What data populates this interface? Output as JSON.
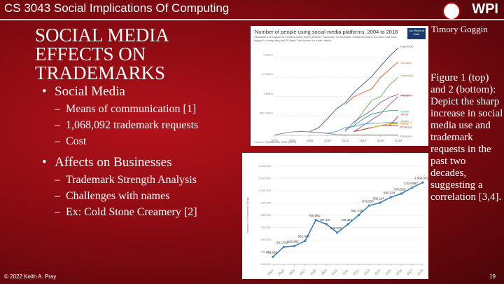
{
  "slide": {
    "course": "CS 3043 Social Implications Of Computing",
    "logo": "WPI",
    "title": "SOCIAL MEDIA EFFECTS ON TRADEMARKS",
    "author": "Timory Goggin",
    "bullets": [
      {
        "text": "Social Media",
        "sub": [
          "Means of communication [1]",
          "1,068,092 trademark requests",
          "Cost"
        ]
      },
      {
        "text": "Affects on Businesses",
        "sub": [
          "Trademark Strength Analysis",
          "Challenges with names",
          "Ex: Cold Stone Creamery [2]"
        ]
      }
    ],
    "caption": "Figure 1 (top) and 2 (bottom): Depict the sharp increase in social media use and trademark requests in the past two decades, suggesting a correlation [3,4].",
    "footer": "© 2022 Keith A. Pray",
    "page": "19"
  },
  "chart_data": [
    {
      "type": "line",
      "title": "Number of people using social media platforms, 2004 to 2018",
      "subtitle": "Estimates correspond to monthly active users (MAUs). Facebook, for example, measures MAUs as users that have logged in during the past 30 days. See source for more details.",
      "badge": "Our World in Data",
      "source": "Source: Statista and TNW (2019)",
      "x": [
        2004,
        2005,
        2006,
        2007,
        2008,
        2009,
        2010,
        2011,
        2012,
        2013,
        2014,
        2015,
        2016,
        2017,
        2018
      ],
      "xlim": [
        2004,
        2018
      ],
      "xticks": [
        2004,
        2006,
        2008,
        2010,
        2012,
        2014,
        2016,
        2018
      ],
      "ylim": [
        0,
        2300
      ],
      "yticks": [
        {
          "value": 500,
          "label": "500 million"
        },
        {
          "value": 1000,
          "label": "1 billion"
        },
        {
          "value": 1500,
          "label": "1.5 billion"
        },
        {
          "value": 2000,
          "label": "2 billion"
        }
      ],
      "grid": "dashed",
      "end_labels": true,
      "series": [
        {
          "name": "Facebook",
          "color": "#3b5b9a",
          "values": [
            null,
            null,
            null,
            null,
            100,
            197,
            431,
            680,
            845,
            1110,
            1320,
            1520,
            1790,
            2040,
            2260
          ]
        },
        {
          "name": "YouTube",
          "color": "#e0562b",
          "values": [
            null,
            null,
            null,
            null,
            null,
            null,
            null,
            null,
            800,
            1000,
            1100,
            1200,
            1500,
            1700,
            1900
          ]
        },
        {
          "name": "WhatsApp",
          "color": "#6aa84f",
          "values": [
            null,
            null,
            null,
            null,
            null,
            null,
            null,
            null,
            null,
            300,
            600,
            900,
            1000,
            1300,
            1500
          ]
        },
        {
          "name": "WeChat",
          "color": "#8e5aa8",
          "values": [
            null,
            null,
            null,
            null,
            null,
            null,
            null,
            null,
            100,
            350,
            500,
            650,
            850,
            980,
            1060
          ]
        },
        {
          "name": "Instagram",
          "color": "#a05a7a",
          "values": [
            null,
            null,
            null,
            null,
            null,
            null,
            null,
            null,
            null,
            100,
            250,
            400,
            550,
            800,
            1000
          ]
        },
        {
          "name": "Tumblr",
          "color": "#2a9d8f",
          "values": [
            null,
            null,
            null,
            null,
            null,
            null,
            null,
            null,
            150,
            250,
            420,
            550,
            600,
            640,
            640
          ]
        },
        {
          "name": "TikTok",
          "color": "#c2185b",
          "values": [
            null,
            null,
            null,
            null,
            null,
            null,
            null,
            null,
            null,
            null,
            null,
            null,
            null,
            250,
            500
          ]
        },
        {
          "name": "Reddit",
          "color": "#e08a2b",
          "values": [
            null,
            null,
            null,
            null,
            null,
            null,
            null,
            null,
            null,
            null,
            150,
            200,
            250,
            300,
            330
          ]
        },
        {
          "name": "Twitter",
          "color": "#4aa3df",
          "values": [
            null,
            null,
            null,
            null,
            null,
            null,
            50,
            100,
            200,
            230,
            290,
            310,
            320,
            330,
            330
          ]
        },
        {
          "name": "Pinterest",
          "color": "#b22222",
          "values": [
            null,
            null,
            null,
            null,
            null,
            null,
            null,
            null,
            null,
            100,
            150,
            200,
            250,
            250,
            250
          ]
        },
        {
          "name": "Snapchat",
          "color": "#d4b106",
          "values": [
            null,
            null,
            null,
            null,
            null,
            null,
            null,
            null,
            null,
            null,
            null,
            200,
            250,
            300,
            300
          ]
        },
        {
          "name": "MySpace",
          "color": "#7a7a7a",
          "values": [
            10,
            50,
            90,
            100,
            90,
            70,
            50,
            20,
            10,
            10,
            10,
            10,
            10,
            10,
            10
          ]
        }
      ]
    },
    {
      "type": "line",
      "y_label": "Number of Trademark Filings",
      "x": [
        2004,
        2005,
        2006,
        2007,
        2008,
        2009,
        2010,
        2011,
        2012,
        2013,
        2014,
        2015,
        2016,
        2017,
        2018
      ],
      "xlim": [
        2004,
        2018
      ],
      "xticks": [
        2004,
        2005,
        2006,
        2007,
        2008,
        2009,
        2010,
        2011,
        2012,
        2013,
        2014,
        2015,
        2016,
        2017,
        2018
      ],
      "ylim": [
        400000,
        1200000
      ],
      "yticks": [
        {
          "value": 400000,
          "label": "400,000"
        },
        {
          "value": 500000,
          "label": "500,000"
        },
        {
          "value": 600000,
          "label": "600,000"
        },
        {
          "value": 700000,
          "label": "700,000"
        },
        {
          "value": 800000,
          "label": "800,000"
        },
        {
          "value": 900000,
          "label": "900,000"
        },
        {
          "value": 1000000,
          "label": "1,000,000"
        },
        {
          "value": 1100000,
          "label": "1,100,000"
        },
        {
          "value": 1200000,
          "label": "1,200,000"
        }
      ],
      "grid": "solid",
      "markers": true,
      "color": "#3f7fc1",
      "values": [
        461052,
        541762,
        549282,
        591489,
        760591,
        727347,
        658933,
        726326,
        801745,
        879550,
        902114,
        946334,
        976529,
        1024967,
        1068092
      ],
      "value_labels": [
        "461,052",
        "541,762",
        "549,282",
        "591,489",
        "760,591",
        "727,347",
        "658,933",
        "726,326",
        "801,745",
        "879,550",
        "902,114",
        "946,334",
        "976,529",
        "1,024,967",
        "1,068,092"
      ]
    }
  ]
}
